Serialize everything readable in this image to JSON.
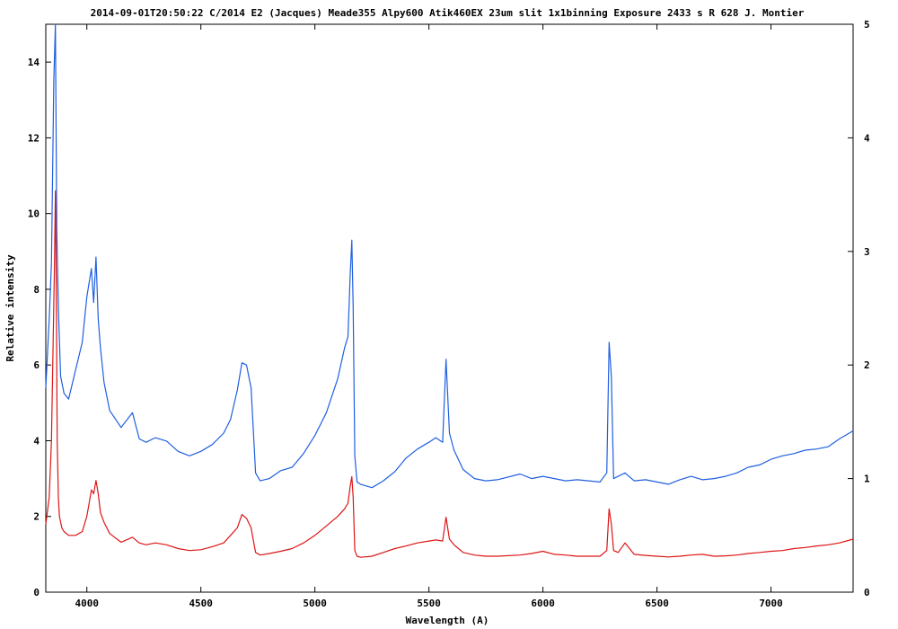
{
  "chart_data": {
    "type": "line",
    "title": "2014-09-01T20:50:22 C/2014 E2 (Jacques) Meade355 Alpy600 Atik460EX 23um slit 1x1binning Exposure 2433 s R 628 J. Montier",
    "xlabel": "Wavelength (A)",
    "ylabel": "Relative intensity",
    "xlim": [
      3820,
      7360
    ],
    "ylim": [
      0,
      15
    ],
    "y2lim": [
      0,
      5
    ],
    "x_ticks": [
      "4000",
      "4500",
      "5000",
      "5500",
      "6000",
      "6500",
      "7000"
    ],
    "y_ticks": [
      "0",
      "2",
      "4",
      "6",
      "8",
      "10",
      "12",
      "14"
    ],
    "y2_ticks": [
      "0",
      "1",
      "2",
      "3",
      "4",
      "5"
    ],
    "grid": false,
    "legend": "none",
    "series": [
      {
        "axis": "right",
        "color": "#1f5fe0",
        "x": [
          3820,
          3835,
          3845,
          3855,
          3862,
          3868,
          3875,
          3885,
          3900,
          3920,
          3950,
          3980,
          4000,
          4020,
          4030,
          4040,
          4050,
          4060,
          4075,
          4100,
          4150,
          4200,
          4230,
          4260,
          4300,
          4350,
          4400,
          4450,
          4500,
          4550,
          4600,
          4630,
          4660,
          4680,
          4700,
          4720,
          4740,
          4760,
          4800,
          4850,
          4900,
          4950,
          5000,
          5050,
          5100,
          5130,
          5145,
          5155,
          5162,
          5168,
          5175,
          5185,
          5200,
          5250,
          5300,
          5350,
          5400,
          5450,
          5500,
          5530,
          5560,
          5575,
          5590,
          5610,
          5650,
          5700,
          5750,
          5800,
          5900,
          5950,
          6000,
          6050,
          6100,
          6150,
          6200,
          6250,
          6280,
          6290,
          6300,
          6310,
          6330,
          6360,
          6400,
          6450,
          6500,
          6550,
          6600,
          6650,
          6700,
          6750,
          6800,
          6850,
          6900,
          6950,
          7000,
          7050,
          7100,
          7150,
          7200,
          7250,
          7300,
          7360
        ],
        "y": [
          1.8,
          2.4,
          2.9,
          4.5,
          5.0,
          3.2,
          2.5,
          1.9,
          1.75,
          1.7,
          1.95,
          2.2,
          2.6,
          2.85,
          2.55,
          2.95,
          2.4,
          2.15,
          1.85,
          1.6,
          1.45,
          1.58,
          1.35,
          1.32,
          1.36,
          1.33,
          1.24,
          1.2,
          1.24,
          1.3,
          1.4,
          1.52,
          1.78,
          2.02,
          2.0,
          1.8,
          1.05,
          0.98,
          1.0,
          1.07,
          1.1,
          1.22,
          1.38,
          1.58,
          1.88,
          2.15,
          2.25,
          2.8,
          3.1,
          2.5,
          1.2,
          0.97,
          0.95,
          0.92,
          0.98,
          1.06,
          1.18,
          1.26,
          1.32,
          1.36,
          1.32,
          2.05,
          1.4,
          1.25,
          1.08,
          1.0,
          0.98,
          0.99,
          1.04,
          1.0,
          1.02,
          1.0,
          0.98,
          0.99,
          0.98,
          0.97,
          1.05,
          2.2,
          1.9,
          1.0,
          1.02,
          1.05,
          0.98,
          0.99,
          0.97,
          0.95,
          0.99,
          1.02,
          0.99,
          1.0,
          1.02,
          1.05,
          1.1,
          1.12,
          1.17,
          1.2,
          1.22,
          1.25,
          1.26,
          1.28,
          1.35,
          1.42
        ]
      },
      {
        "axis": "left",
        "color": "#dd1515",
        "x": [
          3820,
          3835,
          3845,
          3852,
          3858,
          3862,
          3866,
          3870,
          3875,
          3880,
          3890,
          3900,
          3920,
          3950,
          3980,
          4000,
          4020,
          4030,
          4040,
          4050,
          4060,
          4075,
          4100,
          4150,
          4200,
          4230,
          4260,
          4300,
          4350,
          4400,
          4450,
          4500,
          4550,
          4600,
          4630,
          4660,
          4680,
          4700,
          4720,
          4740,
          4760,
          4800,
          4850,
          4900,
          4950,
          5000,
          5050,
          5100,
          5130,
          5145,
          5155,
          5162,
          5168,
          5175,
          5185,
          5200,
          5250,
          5300,
          5350,
          5400,
          5450,
          5500,
          5530,
          5560,
          5575,
          5590,
          5610,
          5650,
          5700,
          5750,
          5800,
          5900,
          5950,
          6000,
          6050,
          6100,
          6150,
          6200,
          6250,
          6280,
          6290,
          6300,
          6310,
          6330,
          6360,
          6400,
          6450,
          6500,
          6550,
          6600,
          6650,
          6700,
          6750,
          6800,
          6850,
          6900,
          6950,
          7000,
          7050,
          7100,
          7150,
          7200,
          7250,
          7300,
          7360
        ],
        "y": [
          1.8,
          2.5,
          4.0,
          6.5,
          8.7,
          10.6,
          8.0,
          4.0,
          2.5,
          2.0,
          1.7,
          1.6,
          1.5,
          1.5,
          1.6,
          2.0,
          2.7,
          2.6,
          2.95,
          2.6,
          2.1,
          1.85,
          1.55,
          1.32,
          1.45,
          1.3,
          1.25,
          1.3,
          1.25,
          1.15,
          1.1,
          1.12,
          1.2,
          1.3,
          1.5,
          1.7,
          2.05,
          1.95,
          1.7,
          1.05,
          0.98,
          1.02,
          1.08,
          1.15,
          1.3,
          1.5,
          1.75,
          2.0,
          2.2,
          2.35,
          2.8,
          3.05,
          2.5,
          1.1,
          0.95,
          0.92,
          0.95,
          1.05,
          1.15,
          1.22,
          1.3,
          1.35,
          1.38,
          1.35,
          1.98,
          1.4,
          1.25,
          1.05,
          0.98,
          0.95,
          0.95,
          0.98,
          1.02,
          1.08,
          1.0,
          0.98,
          0.95,
          0.95,
          0.95,
          1.1,
          2.2,
          1.8,
          1.1,
          1.05,
          1.3,
          1.0,
          0.97,
          0.95,
          0.93,
          0.95,
          0.98,
          1.0,
          0.95,
          0.96,
          0.98,
          1.02,
          1.05,
          1.08,
          1.1,
          1.15,
          1.18,
          1.22,
          1.25,
          1.3,
          1.4
        ]
      }
    ]
  }
}
